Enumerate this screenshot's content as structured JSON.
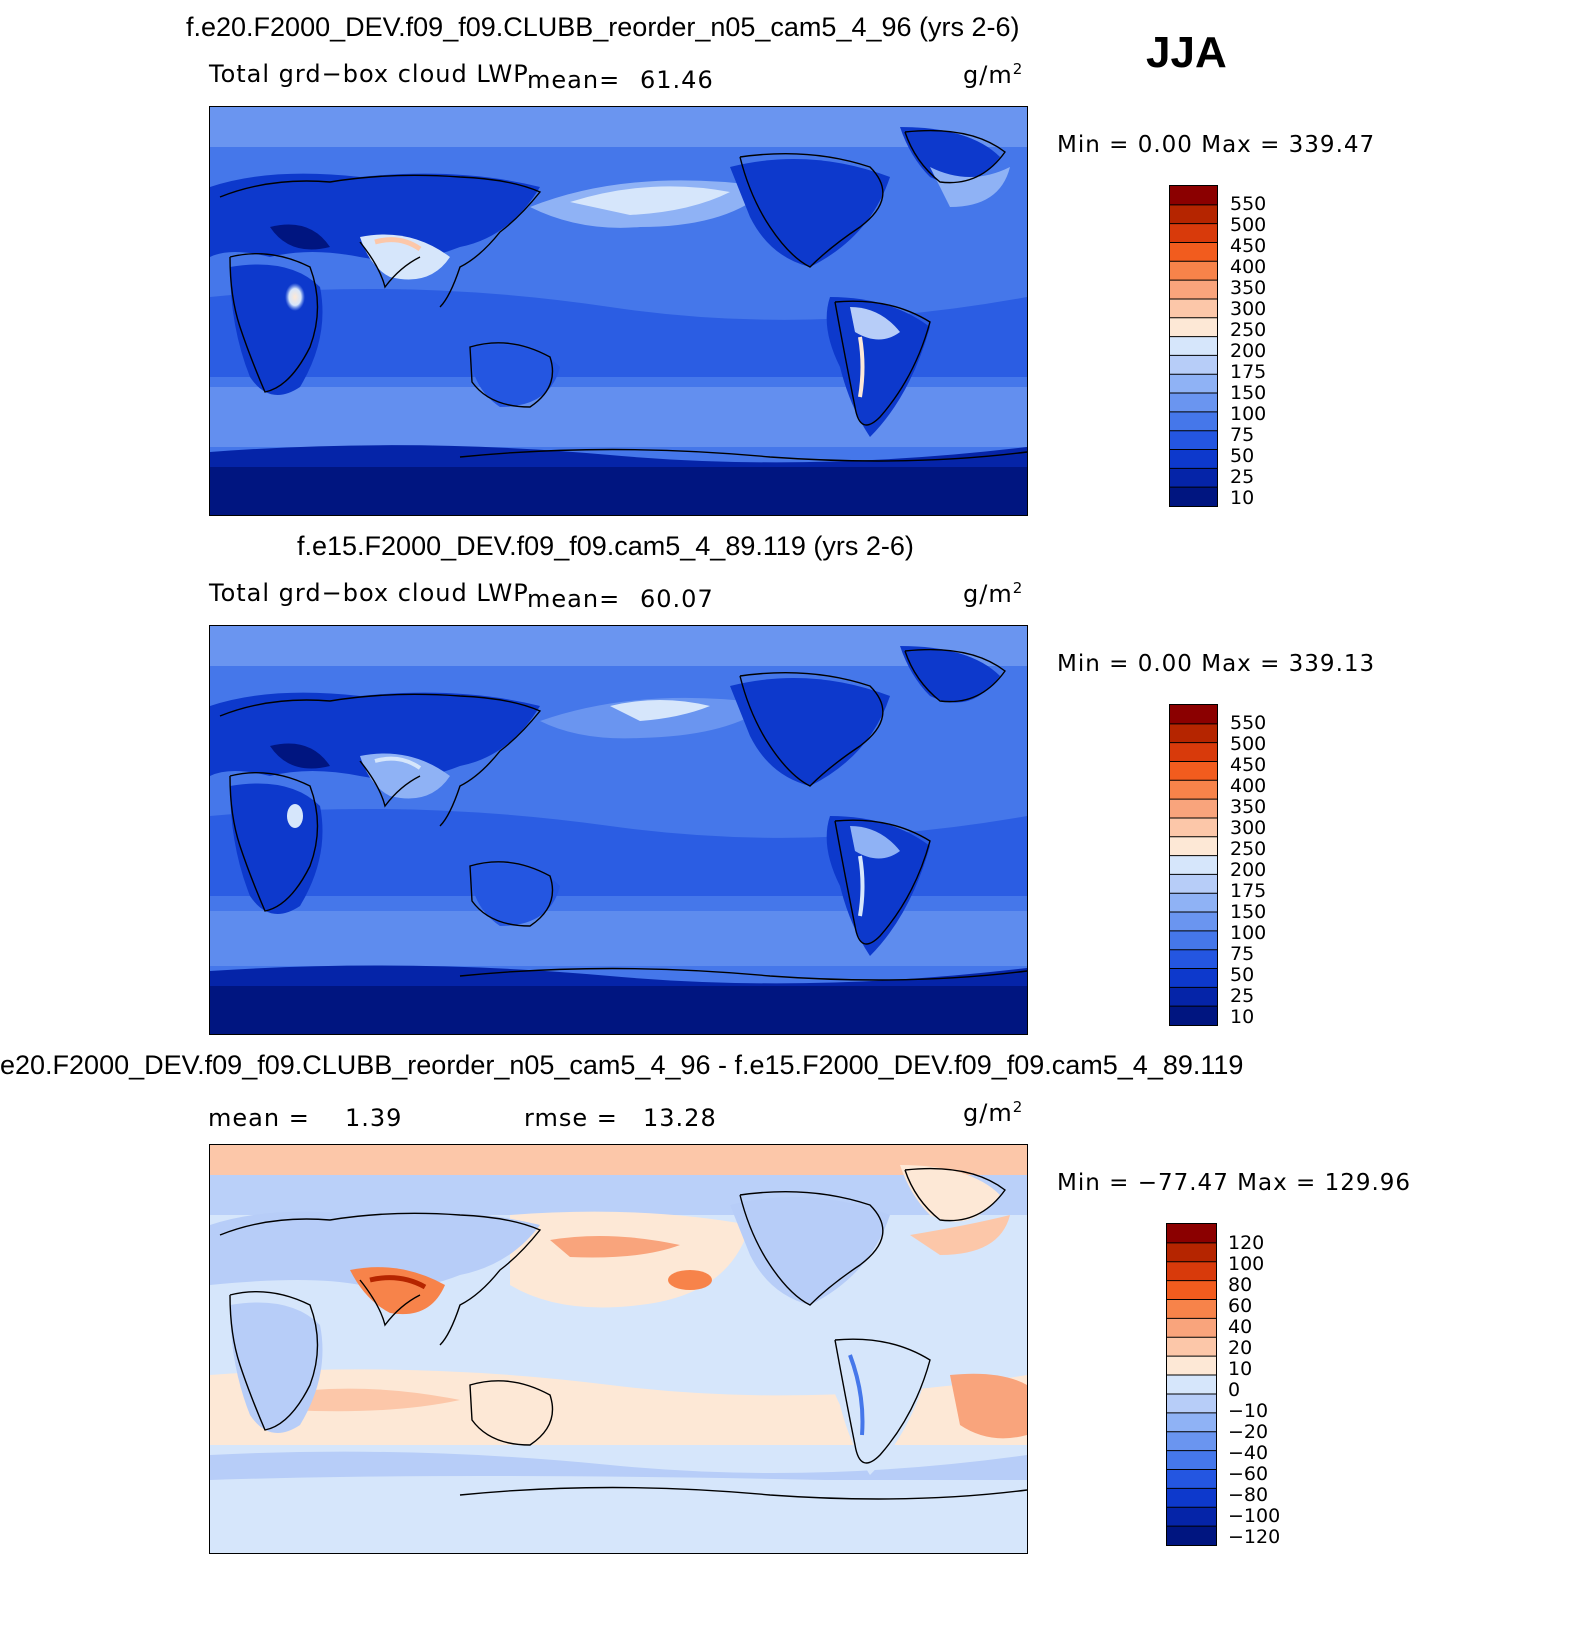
{
  "season": "JJA",
  "panels": [
    {
      "title": "f.e20.F2000_DEV.f09_f09.CLUBB_reorder_n05_cam5_4_96 (yrs 2-6)",
      "variable": "Total grd−box cloud LWP",
      "stat1_label": "mean=",
      "stat1_value": "61.46",
      "units_base": "g/m",
      "units_exp": "2",
      "minmax": "Min =   0.00 Max = 339.47",
      "colorbar_ticks": [
        "550",
        "500",
        "450",
        "400",
        "350",
        "300",
        "250",
        "200",
        "175",
        "150",
        "100",
        "75",
        "50",
        "25",
        "10"
      ]
    },
    {
      "title": "f.e15.F2000_DEV.f09_f09.cam5_4_89.119 (yrs 2-6)",
      "variable": "Total grd−box cloud LWP",
      "stat1_label": "mean=",
      "stat1_value": "60.07",
      "units_base": "g/m",
      "units_exp": "2",
      "minmax": "Min =   0.00 Max = 339.13",
      "colorbar_ticks": [
        "550",
        "500",
        "450",
        "400",
        "350",
        "300",
        "250",
        "200",
        "175",
        "150",
        "100",
        "75",
        "50",
        "25",
        "10"
      ]
    },
    {
      "title": "e20.F2000_DEV.f09_f09.CLUBB_reorder_n05_cam5_4_96 - f.e15.F2000_DEV.f09_f09.cam5_4_89.119",
      "stat1_label": "mean =",
      "stat1_value": "1.39",
      "stat2_label": "rmse =",
      "stat2_value": "13.28",
      "units_base": "g/m",
      "units_exp": "2",
      "minmax": "Min = −77.47 Max = 129.96",
      "colorbar_ticks": [
        "120",
        "100",
        "80",
        "60",
        "40",
        "20",
        "10",
        "0",
        "−10",
        "−20",
        "−40",
        "−60",
        "−80",
        "−100",
        "−120"
      ]
    }
  ],
  "colors": {
    "lwp_scale": [
      "#8b0000",
      "#b52500",
      "#d83a0b",
      "#f25c1e",
      "#f7834a",
      "#f9a47c",
      "#fcc7a9",
      "#fde8d6",
      "#d6e6fb",
      "#b7cdf8",
      "#8fb2f5",
      "#6a95f0",
      "#4577ea",
      "#2456e1",
      "#0d39cc",
      "#0524a8",
      "#001580"
    ],
    "diff_scale": [
      "#8b0000",
      "#b52500",
      "#d83a0b",
      "#f25c1e",
      "#f7834a",
      "#f9a47c",
      "#fcc7a9",
      "#fde8d6",
      "#d6e6fb",
      "#b7cdf8",
      "#8fb2f5",
      "#6a95f0",
      "#4577ea",
      "#2456e1",
      "#0d39cc",
      "#0524a8",
      "#001580"
    ]
  }
}
